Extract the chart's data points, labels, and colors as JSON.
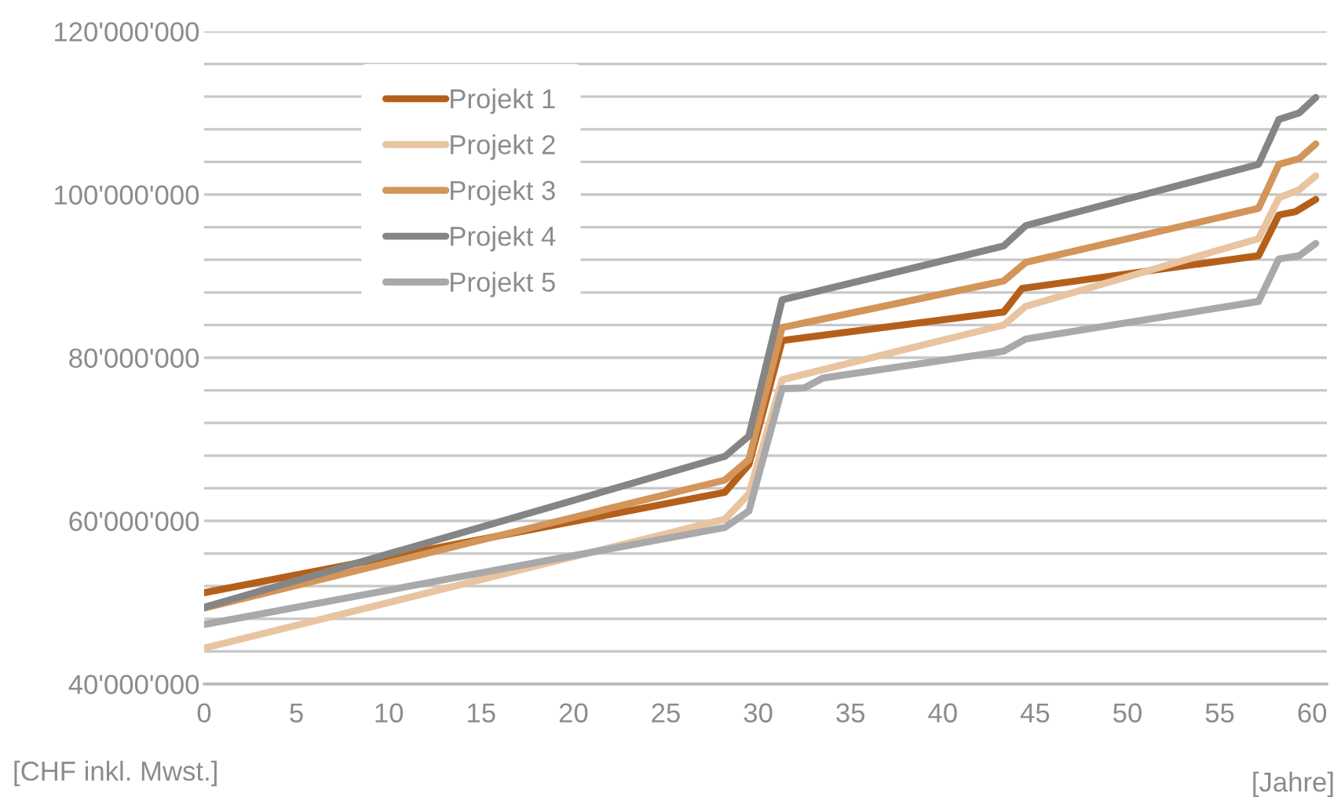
{
  "chart_data": {
    "type": "line",
    "xlabel": "[Jahre]",
    "ylabel": "[CHF inkl. Mwst.]",
    "xlim": [
      0,
      60.8
    ],
    "xticks": [
      0,
      5,
      10,
      15,
      20,
      25,
      30,
      35,
      40,
      45,
      50,
      55,
      60
    ],
    "ylim": [
      40000000,
      120000000
    ],
    "yticks": [
      {
        "value": 40000000,
        "label": "40'000'000"
      },
      {
        "value": 44000000,
        "label": null
      },
      {
        "value": 48000000,
        "label": null
      },
      {
        "value": 52000000,
        "label": null
      },
      {
        "value": 56000000,
        "label": null
      },
      {
        "value": 60000000,
        "label": "60'000'000"
      },
      {
        "value": 64000000,
        "label": null
      },
      {
        "value": 68000000,
        "label": null
      },
      {
        "value": 72000000,
        "label": null
      },
      {
        "value": 76000000,
        "label": null
      },
      {
        "value": 80000000,
        "label": "80'000'000"
      },
      {
        "value": 84000000,
        "label": null
      },
      {
        "value": 88000000,
        "label": null
      },
      {
        "value": 92000000,
        "label": null
      },
      {
        "value": 96000000,
        "label": null
      },
      {
        "value": 100000000,
        "label": "100'000'000"
      },
      {
        "value": 104000000,
        "label": null
      },
      {
        "value": 108000000,
        "label": null
      },
      {
        "value": 112000000,
        "label": null
      },
      {
        "value": 116000000,
        "label": null
      },
      {
        "value": 120000000,
        "label": "120'000'000"
      }
    ],
    "grid": "y",
    "legend": "top left",
    "marker": "none",
    "line_style": "solid",
    "series": [
      {
        "name": "Projekt 1",
        "color": "#b5601a",
        "x": [
          0,
          28.2,
          29.5,
          31.3,
          43.3,
          44.3,
          57.1,
          58.2,
          59.1,
          60.2
        ],
        "values": [
          51200000,
          63500000,
          66900000,
          82100000,
          85600000,
          88500000,
          92500000,
          97500000,
          97900000,
          99400000
        ]
      },
      {
        "name": "Projekt 2",
        "color": "#e8c4a0",
        "x": [
          0,
          28.2,
          29.5,
          31.3,
          43.3,
          44.5,
          57.1,
          58.2,
          59.3,
          60.2
        ],
        "values": [
          44400000,
          60200000,
          63300000,
          77300000,
          84000000,
          86300000,
          94600000,
          99600000,
          100600000,
          102300000
        ]
      },
      {
        "name": "Projekt 3",
        "color": "#d39559",
        "x": [
          0,
          28.2,
          29.5,
          31.3,
          43.3,
          44.5,
          57.1,
          58.2,
          59.3,
          60.2
        ],
        "values": [
          49300000,
          65000000,
          67500000,
          83700000,
          89400000,
          91700000,
          98300000,
          103700000,
          104400000,
          106200000
        ]
      },
      {
        "name": "Projekt 4",
        "color": "#858585",
        "x": [
          0,
          28.2,
          29.5,
          31.3,
          43.3,
          44.5,
          57.1,
          58.2,
          59.3,
          60.2
        ],
        "values": [
          49400000,
          67900000,
          70400000,
          87100000,
          93700000,
          96200000,
          103700000,
          109200000,
          110000000,
          111900000
        ]
      },
      {
        "name": "Projekt 5",
        "color": "#a9a9ab",
        "x": [
          0,
          28.2,
          29.5,
          31.3,
          32.5,
          33.5,
          43.3,
          44.5,
          57.1,
          58.2,
          59.3,
          60.2
        ],
        "values": [
          47300000,
          59200000,
          61200000,
          76200000,
          76300000,
          77500000,
          80800000,
          82300000,
          86900000,
          92100000,
          92500000,
          94000000
        ]
      }
    ]
  }
}
